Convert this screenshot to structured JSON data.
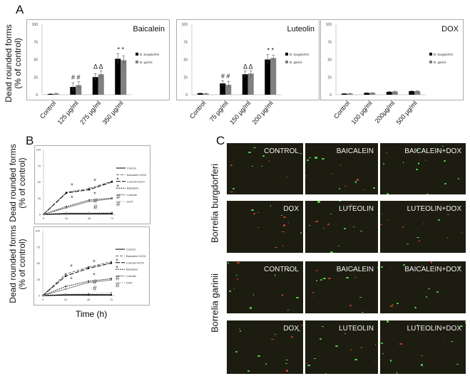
{
  "panels": {
    "a": "A",
    "b": "B",
    "c": "C"
  },
  "ylabel_line1": "Dead rounded forms",
  "ylabel_line2": "(% of control)",
  "time_label": "Time (h)",
  "colors": {
    "bb": "#000000",
    "bg": "#808080"
  },
  "chart_data": [
    {
      "type": "bar",
      "title": "Baicalein",
      "categories": [
        "Control",
        "125 µg/ml",
        "275 µg/ml",
        "350 µg/ml"
      ],
      "ylim": [
        0,
        100
      ],
      "yticks": [
        0,
        25,
        50,
        75,
        100
      ],
      "series": [
        {
          "name": "B. burgdorferi",
          "values": [
            1,
            11,
            25,
            51
          ],
          "errors": [
            0.5,
            6,
            5,
            7
          ]
        },
        {
          "name": "B. garinii",
          "values": [
            1.5,
            13.5,
            29,
            49
          ],
          "errors": [
            0.5,
            5,
            5,
            6
          ]
        }
      ],
      "annotations": [
        "",
        "# #",
        "Δ Δ",
        "* *"
      ]
    },
    {
      "type": "bar",
      "title": "Luteolin",
      "categories": [
        "Control",
        "75 µg/ml",
        "150 µg/ml",
        "200 µg/ml"
      ],
      "ylim": [
        0,
        100
      ],
      "yticks": [
        0,
        25,
        50,
        75,
        100
      ],
      "series": [
        {
          "name": "B. burgdorferi",
          "values": [
            2,
            16,
            29,
            50
          ],
          "errors": [
            0.5,
            4,
            5,
            7
          ]
        },
        {
          "name": "B. garinii",
          "values": [
            1.5,
            14,
            30,
            52
          ],
          "errors": [
            0.5,
            5,
            4,
            4
          ]
        }
      ],
      "annotations": [
        "",
        "# #",
        "Δ Δ",
        "* *"
      ]
    },
    {
      "type": "bar",
      "title": "DOX",
      "categories": [
        "Control",
        "100 µg/ml",
        "200µg/ml",
        "500 µg/ml"
      ],
      "ylim": [
        0,
        100
      ],
      "yticks": [
        0,
        25,
        50,
        75,
        100
      ],
      "series": [
        {
          "name": "B. burgdorferi",
          "values": [
            1.5,
            2.5,
            4,
            5
          ],
          "errors": [
            0.3,
            0.3,
            0.5,
            0.5
          ]
        },
        {
          "name": "B. garinii",
          "values": [
            1.5,
            2.5,
            4.5,
            5
          ],
          "errors": [
            0.3,
            0.3,
            0.5,
            0.5
          ]
        }
      ],
      "annotations": [
        "",
        "",
        "",
        ""
      ]
    },
    {
      "type": "line",
      "x": [
        0,
        24,
        48,
        72
      ],
      "ylim": [
        0,
        100
      ],
      "yticks": [
        0,
        25,
        50,
        75,
        100
      ],
      "series": [
        {
          "name": "Control",
          "values": [
            0,
            1,
            1,
            1
          ]
        },
        {
          "name": "Baicalein+DOX",
          "values": [
            0,
            34,
            40,
            51
          ]
        },
        {
          "name": "Luteolin+DOX",
          "values": [
            0,
            33,
            38,
            50
          ]
        },
        {
          "name": "Baicalein",
          "values": [
            0,
            12,
            22,
            25
          ]
        },
        {
          "name": "Luteolin",
          "values": [
            0,
            10,
            20,
            24
          ]
        },
        {
          "name": "DOX",
          "values": [
            0,
            2,
            2,
            3
          ]
        }
      ]
    },
    {
      "type": "line",
      "x": [
        0,
        24,
        48,
        72
      ],
      "ylim": [
        0,
        100
      ],
      "yticks": [
        0,
        25,
        50,
        75,
        100
      ],
      "series": [
        {
          "name": "Control",
          "values": [
            0,
            1,
            1,
            1
          ]
        },
        {
          "name": "Baicalein+DOX",
          "values": [
            0,
            33,
            44,
            52
          ]
        },
        {
          "name": "Luteolin+DOX",
          "values": [
            0,
            30,
            42,
            50
          ]
        },
        {
          "name": "Baicalein",
          "values": [
            0,
            14,
            22,
            26
          ]
        },
        {
          "name": "Luteolin",
          "values": [
            0,
            10,
            20,
            24
          ]
        },
        {
          "name": "DOX",
          "values": [
            0,
            2,
            3,
            4
          ]
        }
      ]
    }
  ],
  "micro": {
    "species": [
      "Borrelia burgdorferi",
      "Borrelia garinii"
    ],
    "rows": [
      [
        "CONTROL",
        "BAICALEIN",
        "BAICALEIN+DOX"
      ],
      [
        "DOX",
        "LUTEOLIN",
        "LUTEOLIN+DOX"
      ],
      [
        "CONTROL",
        "BAICALEIN",
        "BAICALEIN+DOX"
      ],
      [
        "DOX",
        "LUTEOLIN",
        "LUTEOLIN+DOX"
      ]
    ]
  }
}
